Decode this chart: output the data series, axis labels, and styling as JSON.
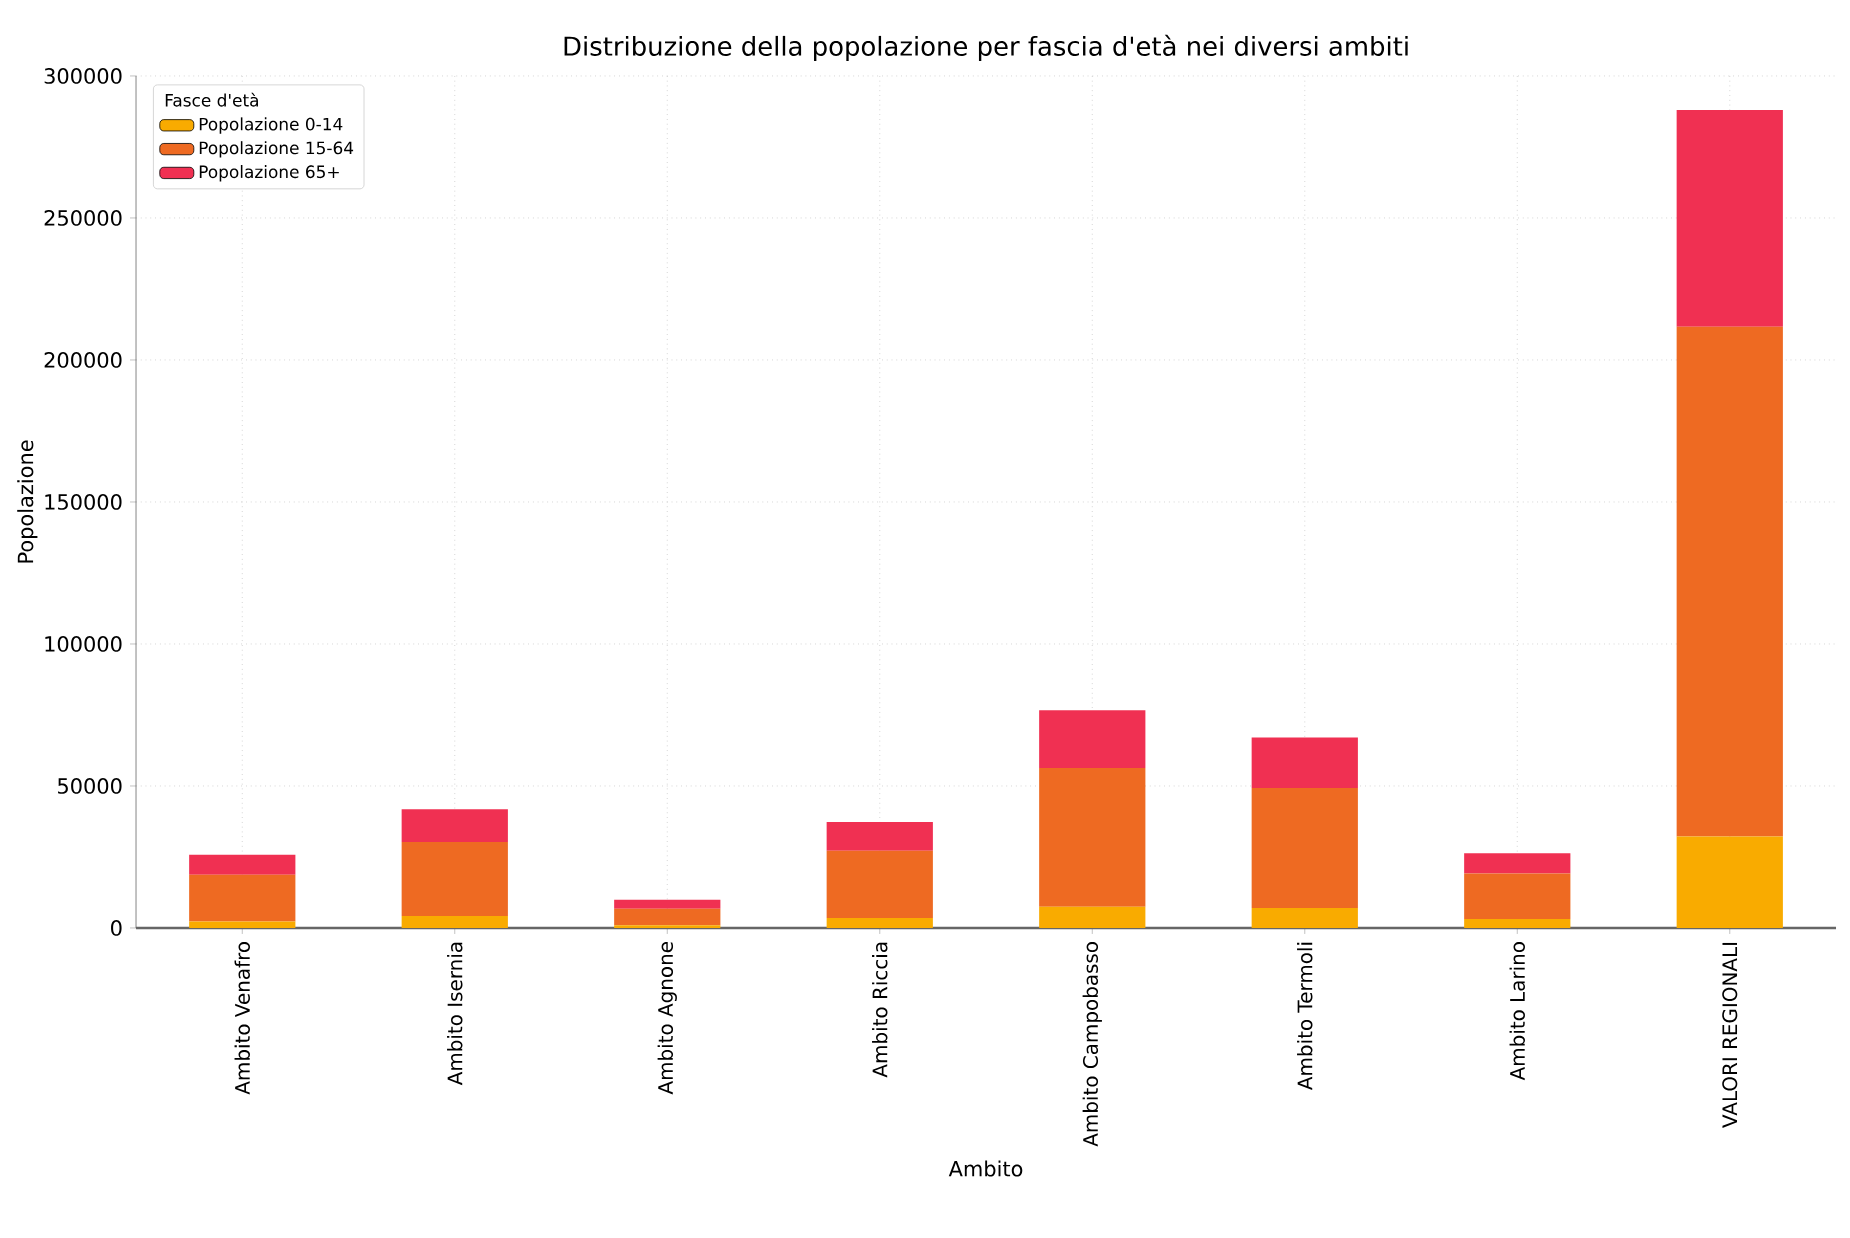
{
  "chart_data": {
    "type": "bar",
    "title": "Distribuzione della popolazione per fascia d'età nei diversi ambiti",
    "xlabel": "Ambito",
    "ylabel": "Popolazione",
    "legend_title": "Fasce d'età",
    "categories": [
      "Ambito Venafro",
      "Ambito Isernia",
      "Ambito Agnone",
      "Ambito Riccia",
      "Ambito Campobasso",
      "Ambito Termoli",
      "Ambito Larino",
      "VALORI REGIONALI"
    ],
    "stacked": true,
    "series": [
      {
        "name": "Popolazione 0-14",
        "color": "#f9ab00",
        "values": [
          2300,
          4200,
          1000,
          3500,
          7500,
          7000,
          3200,
          32200
        ]
      },
      {
        "name": "Popolazione 15-64",
        "color": "#ee6a22",
        "values": [
          16400,
          26100,
          5800,
          23700,
          48800,
          42300,
          16000,
          179500
        ]
      },
      {
        "name": "Popolazione 65+",
        "color": "#f03052",
        "values": [
          7100,
          11500,
          3100,
          10100,
          20400,
          17800,
          7100,
          76300
        ]
      }
    ],
    "ylim": [
      0,
      300000
    ],
    "yticks": [
      0,
      50000,
      100000,
      150000,
      200000,
      250000,
      300000
    ],
    "grid": true,
    "legend": "top left"
  }
}
